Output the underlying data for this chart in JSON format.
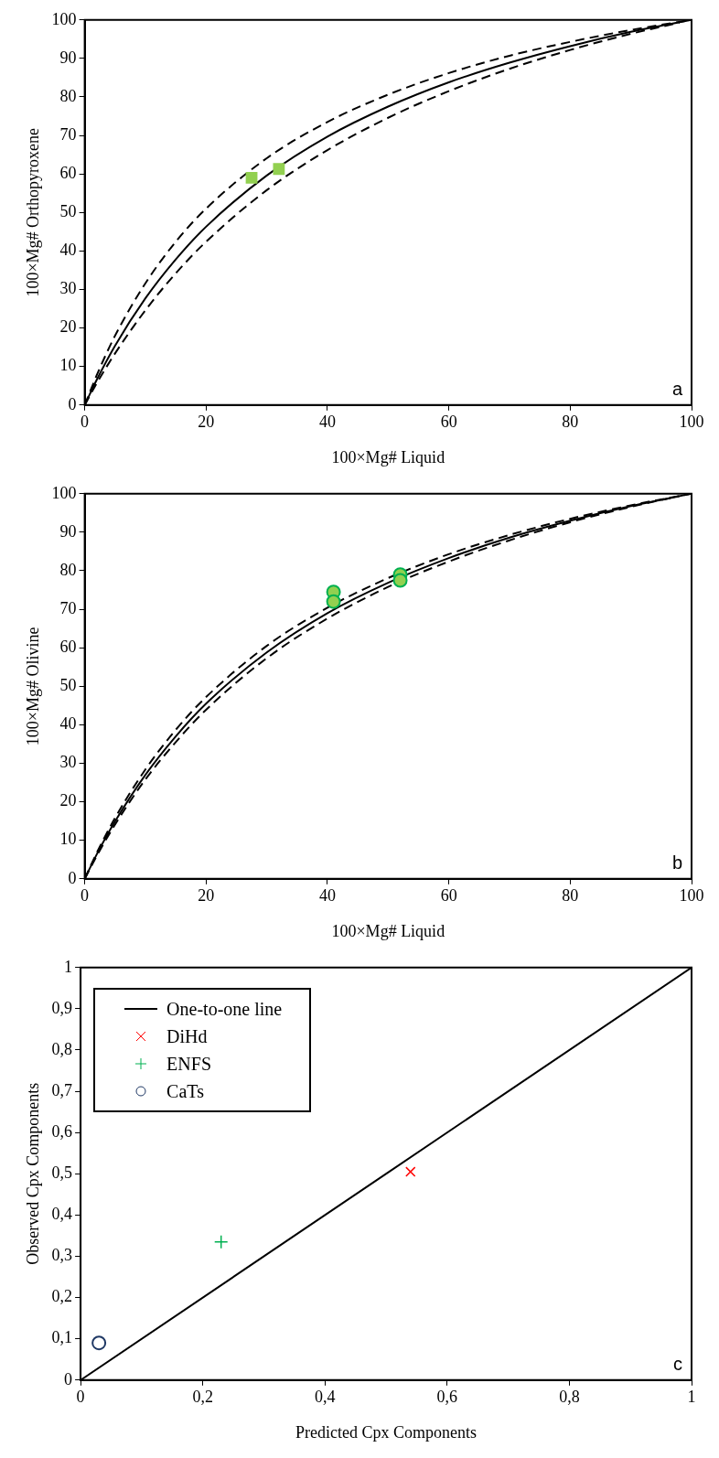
{
  "chart_data": [
    {
      "type": "scatter",
      "xlabel": "100×Mg# Liquid",
      "ylabel": "100×Mg# Orthopyroxene",
      "xlim": [
        0,
        100
      ],
      "ylim": [
        0,
        100
      ],
      "xticks": [
        0,
        20,
        40,
        60,
        80,
        100
      ],
      "yticks": [
        0,
        10,
        20,
        30,
        40,
        50,
        60,
        70,
        80,
        90,
        100
      ],
      "grid": false,
      "legend": false,
      "annotations": [
        "a"
      ],
      "series": [
        {
          "type": "line",
          "color": "#000000",
          "line_style": "solid",
          "marker": "none",
          "x": [
            0,
            2,
            5,
            10,
            15,
            20,
            30,
            40,
            50,
            60,
            70,
            80,
            90,
            100
          ],
          "values": [
            0,
            6.6,
            15.4,
            27.7,
            37.8,
            46.3,
            59.6,
            69.7,
            77.5,
            83.8,
            88.9,
            93.2,
            96.9,
            100
          ]
        },
        {
          "type": "line",
          "color": "#000000",
          "line_style": "dashed",
          "marker": "none",
          "x": [
            0,
            2,
            5,
            10,
            15,
            20,
            30,
            40,
            50,
            60,
            70,
            80,
            90,
            100
          ],
          "values": [
            0,
            7.8,
            18,
            31.6,
            42.4,
            51,
            64.1,
            73.5,
            80.6,
            86.2,
            90.7,
            94.3,
            97.4,
            100
          ]
        },
        {
          "type": "line",
          "color": "#000000",
          "line_style": "dashed",
          "marker": "none",
          "x": [
            0,
            2,
            5,
            10,
            15,
            20,
            30,
            40,
            50,
            60,
            70,
            80,
            90,
            98
          ],
          "values": [
            0,
            5.7,
            13.4,
            24.6,
            34.2,
            42.4,
            55.8,
            66.2,
            74.6,
            81.5,
            87.3,
            92.2,
            96.4,
            99.3
          ]
        },
        {
          "type": "scatter",
          "color": "#92d050",
          "marker": "square",
          "x": [
            27.5,
            32
          ],
          "values": [
            59,
            61.3
          ]
        }
      ]
    },
    {
      "type": "scatter",
      "xlabel": "100×Mg# Liquid",
      "ylabel": "100×Mg# Olivine",
      "xlim": [
        0,
        100
      ],
      "ylim": [
        0,
        100
      ],
      "xticks": [
        0,
        20,
        40,
        60,
        80,
        100
      ],
      "yticks": [
        0,
        10,
        20,
        30,
        40,
        50,
        60,
        70,
        80,
        90,
        100
      ],
      "grid": false,
      "legend": false,
      "annotations": [
        "b"
      ],
      "series": [
        {
          "type": "line",
          "color": "#000000",
          "line_style": "solid",
          "marker": "none",
          "x": [
            0,
            2,
            5,
            10,
            15,
            20,
            30,
            40,
            50,
            60,
            70,
            80,
            90,
            100
          ],
          "values": [
            0,
            6.4,
            14.9,
            27,
            37,
            45.5,
            58.8,
            69,
            76.9,
            83.3,
            88.6,
            93,
            96.8,
            100
          ]
        },
        {
          "type": "line",
          "color": "#000000",
          "line_style": "dashed",
          "marker": "none",
          "x": [
            0,
            2,
            5,
            10,
            15,
            20,
            30,
            40,
            50,
            60,
            70,
            80,
            90,
            100
          ],
          "values": [
            0,
            6.8,
            15.8,
            28.4,
            38.7,
            47.2,
            60.5,
            70.4,
            78.1,
            84.3,
            89.3,
            93.5,
            97,
            100
          ]
        },
        {
          "type": "line",
          "color": "#000000",
          "line_style": "dashed",
          "marker": "none",
          "x": [
            0,
            2,
            5,
            10,
            15,
            20,
            30,
            40,
            50,
            60,
            70,
            80,
            90,
            98
          ],
          "values": [
            0,
            6,
            14.1,
            25.8,
            35.5,
            43.9,
            57.3,
            67.6,
            75.8,
            82.4,
            87.9,
            92.6,
            96.6,
            99.4
          ]
        },
        {
          "type": "scatter",
          "color": "#92d050",
          "marker": "circle",
          "x": [
            41,
            41,
            52,
            52
          ],
          "values": [
            74.5,
            72,
            79,
            77.5
          ]
        }
      ]
    },
    {
      "type": "scatter",
      "xlabel": "Predicted Cpx Components",
      "ylabel": "Observed Cpx Components",
      "xlim": [
        0,
        1
      ],
      "ylim": [
        0,
        1
      ],
      "xticks": [
        0,
        {
          "value": 0.2,
          "label": "0,2"
        },
        {
          "value": 0.4,
          "label": "0,4"
        },
        {
          "value": 0.6,
          "label": "0,6"
        },
        {
          "value": 0.8,
          "label": "0,8"
        },
        1
      ],
      "yticks": [
        0,
        {
          "value": 0.1,
          "label": "0,1"
        },
        {
          "value": 0.2,
          "label": "0,2"
        },
        {
          "value": 0.3,
          "label": "0,3"
        },
        {
          "value": 0.4,
          "label": "0,4"
        },
        {
          "value": 0.5,
          "label": "0,5"
        },
        {
          "value": 0.6,
          "label": "0,6"
        },
        {
          "value": 0.7,
          "label": "0,7"
        },
        {
          "value": 0.8,
          "label": "0,8"
        },
        {
          "value": 0.9,
          "label": "0,9"
        },
        1
      ],
      "grid": false,
      "legend": "top left",
      "annotations": [
        "c"
      ],
      "series": [
        {
          "type": "line",
          "name": "One-to-one line",
          "color": "#000000",
          "line_style": "solid",
          "marker": "none",
          "x": [
            0,
            1
          ],
          "values": [
            0,
            1
          ]
        },
        {
          "type": "scatter",
          "name": "DiHd",
          "color": "#ff0000",
          "marker": "x",
          "x": [
            0.54
          ],
          "values": [
            0.505
          ]
        },
        {
          "type": "scatter",
          "name": "ENFS",
          "color": "#00b050",
          "marker": "cross",
          "x": [
            0.23
          ],
          "values": [
            0.335
          ]
        },
        {
          "type": "scatter",
          "name": "CaTs",
          "color": "#1f3864",
          "marker": "circle",
          "x": [
            0.03
          ],
          "values": [
            0.09
          ]
        }
      ]
    }
  ]
}
